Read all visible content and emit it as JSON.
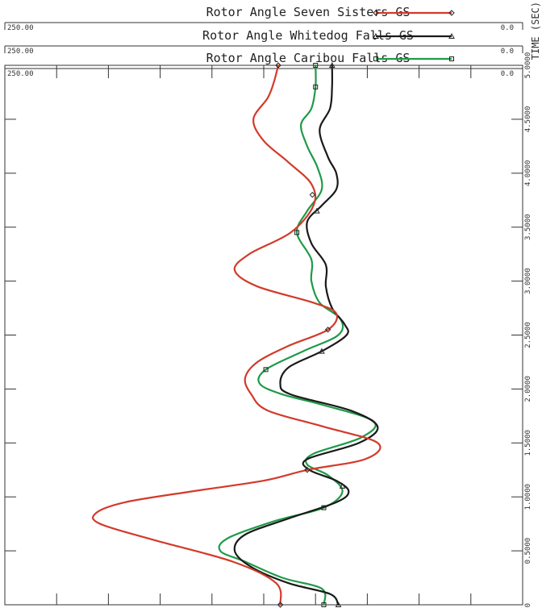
{
  "chart_data": {
    "type": "line",
    "orientation": "vertical-time",
    "time_axis": {
      "label": "TIME (SEC)",
      "range": [
        0.0,
        5.0
      ],
      "ticks": [
        "0.0",
        "0.5000",
        "1.0000",
        "1.5000",
        "2.0000",
        "2.5000",
        "3.0000",
        "3.5000",
        "4.0000",
        "4.5000",
        "5.0000"
      ]
    },
    "value_axis": {
      "range": [
        250.0,
        0.0
      ],
      "min_label": "250.00",
      "max_label": "0.0"
    },
    "series": [
      {
        "name": "Rotor Angle Seven Sisters GS",
        "color": "#d23a2a",
        "marker": "diamond",
        "points": [
          [
            0.0,
            117
          ],
          [
            0.2,
            119
          ],
          [
            0.4,
            140
          ],
          [
            0.6,
            178
          ],
          [
            0.75,
            204
          ],
          [
            0.85,
            206
          ],
          [
            0.95,
            192
          ],
          [
            1.05,
            160
          ],
          [
            1.15,
            125
          ],
          [
            1.25,
            104
          ],
          [
            1.35,
            76
          ],
          [
            1.5,
            70
          ],
          [
            1.65,
            96
          ],
          [
            1.8,
            123
          ],
          [
            1.95,
            131
          ],
          [
            2.1,
            134
          ],
          [
            2.25,
            128
          ],
          [
            2.4,
            113
          ],
          [
            2.55,
            94
          ],
          [
            2.7,
            90
          ],
          [
            2.8,
            101
          ],
          [
            2.95,
            128
          ],
          [
            3.1,
            139
          ],
          [
            3.25,
            132
          ],
          [
            3.45,
            112
          ],
          [
            3.7,
            101
          ],
          [
            3.9,
            102
          ],
          [
            4.1,
            113
          ],
          [
            4.3,
            125
          ],
          [
            4.5,
            130
          ],
          [
            4.7,
            123
          ],
          [
            4.85,
            120
          ],
          [
            5.0,
            118
          ]
        ],
        "marker_times": [
          0.0,
          1.25,
          2.55,
          3.8,
          5.0
        ]
      },
      {
        "name": "Rotor Angle Whitedog Falls GS",
        "color": "#1a1a1a",
        "marker": "triangle",
        "points": [
          [
            0.0,
            89
          ],
          [
            0.1,
            93
          ],
          [
            0.2,
            113
          ],
          [
            0.35,
            131
          ],
          [
            0.5,
            139
          ],
          [
            0.65,
            134
          ],
          [
            0.8,
            113
          ],
          [
            0.95,
            90
          ],
          [
            1.05,
            84
          ],
          [
            1.15,
            90
          ],
          [
            1.25,
            103
          ],
          [
            1.35,
            104
          ],
          [
            1.5,
            79
          ],
          [
            1.65,
            70
          ],
          [
            1.8,
            83
          ],
          [
            1.95,
            112
          ],
          [
            2.05,
            117
          ],
          [
            2.2,
            113
          ],
          [
            2.35,
            97
          ],
          [
            2.5,
            85
          ],
          [
            2.6,
            86
          ],
          [
            2.75,
            92
          ],
          [
            2.95,
            95
          ],
          [
            3.15,
            95
          ],
          [
            3.35,
            102
          ],
          [
            3.55,
            104
          ],
          [
            3.7,
            97
          ],
          [
            3.85,
            90
          ],
          [
            4.0,
            90
          ],
          [
            4.15,
            94
          ],
          [
            4.4,
            98
          ],
          [
            4.6,
            93
          ],
          [
            4.8,
            92
          ],
          [
            5.0,
            92
          ]
        ],
        "marker_times": [
          0.0,
          1.1,
          2.35,
          3.65,
          5.0
        ]
      },
      {
        "name": "Rotor Angle Caribou Falls GS",
        "color": "#1f9a48",
        "marker": "square",
        "points": [
          [
            0.0,
            96
          ],
          [
            0.15,
            97
          ],
          [
            0.25,
            116
          ],
          [
            0.4,
            134
          ],
          [
            0.5,
            146
          ],
          [
            0.62,
            142
          ],
          [
            0.78,
            119
          ],
          [
            0.9,
            96
          ],
          [
            1.05,
            87
          ],
          [
            1.2,
            94
          ],
          [
            1.3,
            104
          ],
          [
            1.4,
            101
          ],
          [
            1.55,
            78
          ],
          [
            1.7,
            72
          ],
          [
            1.85,
            96
          ],
          [
            1.95,
            116
          ],
          [
            2.05,
            127
          ],
          [
            2.18,
            124
          ],
          [
            2.35,
            106
          ],
          [
            2.5,
            89
          ],
          [
            2.65,
            88
          ],
          [
            2.8,
            98
          ],
          [
            3.0,
            102
          ],
          [
            3.2,
            102
          ],
          [
            3.45,
            109
          ],
          [
            3.65,
            104
          ],
          [
            3.85,
            97
          ],
          [
            4.05,
            99
          ],
          [
            4.25,
            104
          ],
          [
            4.45,
            107
          ],
          [
            4.6,
            102
          ],
          [
            4.8,
            100
          ],
          [
            5.0,
            100
          ]
        ],
        "marker_times": [
          0.0,
          0.9,
          2.18,
          3.45,
          4.8,
          5.0
        ]
      }
    ],
    "grid": false,
    "legend": "top"
  }
}
